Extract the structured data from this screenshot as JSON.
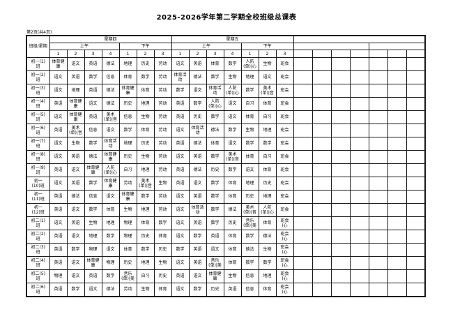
{
  "page": {
    "title": "2025-2026学年第二学期全校班级总课表",
    "page_label": "第2页(共4页)"
  },
  "colors": {
    "background": "#ffffff",
    "border": "#1a1a1a",
    "text": "#000000"
  },
  "table": {
    "corner_label": "班级/星期",
    "day_groups": [
      {
        "label": "星期四",
        "span": 7
      },
      {
        "label": "星期五",
        "span": 7
      },
      {
        "label": "",
        "span": 7
      }
    ],
    "session_groups": [
      {
        "label": "上午",
        "span": 4
      },
      {
        "label": "下午",
        "span": 3
      },
      {
        "label": "上午",
        "span": 4
      },
      {
        "label": "下午",
        "span": 3
      },
      {
        "label": "",
        "span": 4
      },
      {
        "label": "",
        "span": 3
      }
    ],
    "period_numbers": [
      "1",
      "2",
      "3",
      "4",
      "1",
      "2",
      "3",
      "1",
      "2",
      "3",
      "4",
      "1",
      "2",
      "3"
    ],
    "empty_trailing_columns": 7,
    "rows": [
      {
        "label": "初一(1)\n班",
        "cells": [
          "体育健\n康",
          "语文",
          "英语",
          "德法",
          "地理",
          "历史",
          "劳动",
          "语文",
          "英语",
          "体育",
          "数学",
          "人防\n(单)|心",
          "生物",
          "班会"
        ]
      },
      {
        "label": "初一(2)\n班",
        "cells": [
          "语文",
          "英语",
          "数学",
          "信息",
          "体育",
          "数学",
          "劳动",
          "体育活\n动",
          "德法",
          "数学",
          "生物",
          "地理",
          "语文",
          "班会"
        ]
      },
      {
        "label": "初一(3)\n班",
        "cells": [
          "语文",
          "地理",
          "英语",
          "德法",
          "体育健\n康",
          "体育",
          "劳动",
          "数学",
          "语文",
          "体育活\n动",
          "人防\n(单)|心",
          "数学",
          "美术\n(单)|音",
          "班会"
        ]
      },
      {
        "label": "初一(4)\n班",
        "cells": [
          "英语",
          "体育健\n康",
          "语文",
          "德法",
          "历史",
          "地理",
          "劳动",
          "英语",
          "数学",
          "人防\n(单)|心",
          "语文",
          "自习",
          "体育",
          "班会"
        ]
      },
      {
        "label": "初一(5)\n班",
        "cells": [
          "语文",
          "体育健\n康",
          "英语",
          "美术\n(单)|音",
          "信息",
          "生物",
          "劳动",
          "英语",
          "历史",
          "数学",
          "语文",
          "体育",
          "自习",
          "班会"
        ]
      },
      {
        "label": "初一(6)\n班",
        "cells": [
          "英语",
          "美术\n(单)|音",
          "信息",
          "语文",
          "数学",
          "体育",
          "劳动",
          "语文",
          "体育活\n动",
          "德法",
          "数学",
          "生物",
          "地理",
          "班会"
        ]
      },
      {
        "label": "初一(7)\n班",
        "cells": [
          "语文",
          "生物",
          "数学",
          "体育活\n动",
          "地理",
          "历史",
          "劳动",
          "英语",
          "德法",
          "体育",
          "语文",
          "数学",
          "数学",
          "班会"
        ]
      },
      {
        "label": "初一(8)\n班",
        "cells": [
          "语文",
          "英语",
          "德法",
          "体育健\n康",
          "历史",
          "生物",
          "劳动",
          "语文",
          "英语",
          "数学",
          "美术\n(单)|音",
          "体育",
          "自习",
          "班会"
        ]
      },
      {
        "label": "初一(9)\n班",
        "cells": [
          "英语",
          "语文",
          "体育健\n康",
          "人防\n(单)|心",
          "自习",
          "地理",
          "劳动",
          "英语",
          "德法",
          "历史",
          "数学",
          "语文",
          "体育",
          "班会"
        ]
      },
      {
        "label": "初一\n(10)班",
        "cells": [
          "语文",
          "英语",
          "数学",
          "体育健\n康",
          "劳动",
          "美术\n(单)|音",
          "生物",
          "英语",
          "语文",
          "数学",
          "体育",
          "地理",
          "历史",
          "班会"
        ]
      },
      {
        "label": "初一\n(11)班",
        "cells": [
          "英语",
          "德法",
          "信息",
          "语文",
          "体育健\n康",
          "数学",
          "劳动",
          "语文",
          "英语",
          "数学",
          "体育",
          "历史",
          "地理",
          "班会"
        ]
      },
      {
        "label": "初一\n(12)班",
        "cells": [
          "英语",
          "语文",
          "数学",
          "体育",
          "生物",
          "地理",
          "劳动",
          "语文",
          "体育活\n动",
          "数学",
          "德法",
          "美术\n(单)|音",
          "人防\n(单)|心",
          "班会"
        ]
      },
      {
        "label": "初二(1)\n班",
        "cells": [
          "语文",
          "英语",
          "生物",
          "地理",
          "物理",
          "体育",
          "数学",
          "语文",
          "英语",
          "数学",
          "历史",
          "音乐\n(单)|美",
          "体育",
          "班会\n(心"
        ]
      },
      {
        "label": "初二(2)\n班",
        "cells": [
          "英语",
          "语文",
          "地理",
          "数学",
          "物理",
          "历史",
          "体育",
          "语文",
          "数学",
          "英语",
          "体育",
          "数学",
          "德法",
          "班会\n(心"
        ]
      },
      {
        "label": "初二(3)\n班",
        "cells": [
          "英语",
          "数学",
          "物理",
          "语文",
          "体育",
          "数学",
          "历史",
          "数学",
          "英语",
          "语文",
          "体育",
          "德法",
          "生物",
          "班会\n(心"
        ]
      },
      {
        "label": "初二(4)\n班",
        "cells": [
          "英语",
          "语文",
          "体育健\n康",
          "物理",
          "历史",
          "地理",
          "生物",
          "语文",
          "英语",
          "音乐\n(单)|美",
          "体育",
          "数学",
          "数学",
          "班会\n(心"
        ]
      },
      {
        "label": "初二(5)\n班",
        "cells": [
          "物理",
          "语文",
          "英语",
          "数学",
          "音乐\n(单)|美",
          "自习",
          "历史",
          "英语",
          "语文",
          "体育健\n康",
          "生物",
          "信息",
          "地理",
          "班会\n(心"
        ]
      },
      {
        "label": "初二(6)\n班",
        "cells": [
          "英语",
          "数学",
          "语文",
          "德法",
          "劳动",
          "生物",
          "体育",
          "语文",
          "数学",
          "历史",
          "英语",
          "信息",
          "体育",
          "班会\n(心"
        ]
      }
    ]
  }
}
